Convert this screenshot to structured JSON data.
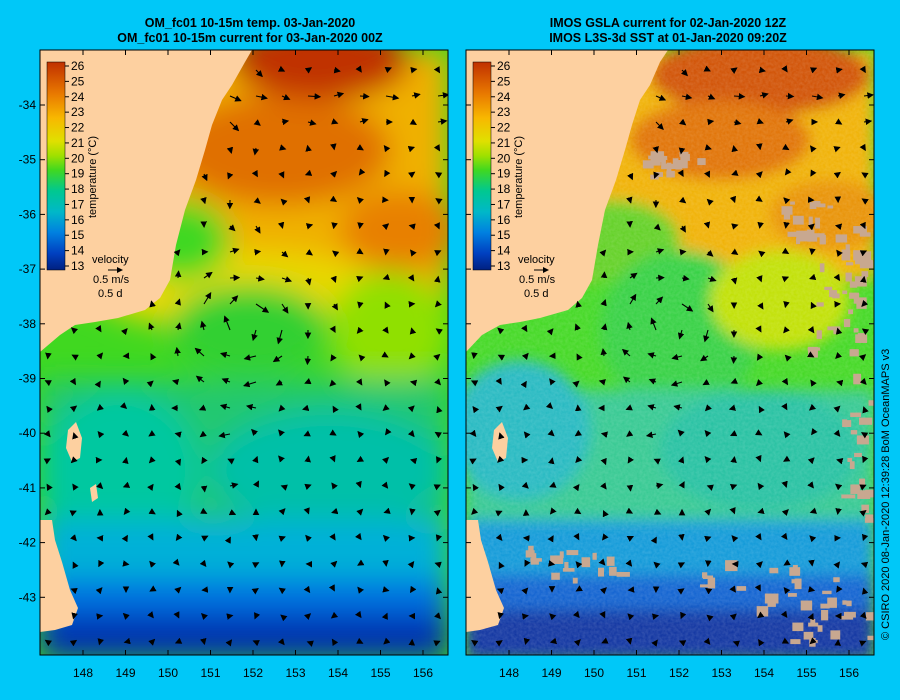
{
  "panels": [
    {
      "title_line1": "OM_fc01 10-15m temp. 03-Jan-2020",
      "title_line2": "OM_fc01 10-15m current for 03-Jan-2020 00Z"
    },
    {
      "title_line1": "IMOS GSLA current for 02-Jan-2020 12Z",
      "title_line2": "IMOS L3S-3d SST at 01-Jan-2020 09:20Z"
    }
  ],
  "map": {
    "lon_ticks": [
      "148",
      "149",
      "150",
      "151",
      "152",
      "153",
      "154",
      "155",
      "156"
    ],
    "lat_ticks": [
      "-34",
      "-35",
      "-36",
      "-37",
      "-38",
      "-39",
      "-40",
      "-41",
      "-42",
      "-43"
    ],
    "colors": {
      "land": "#fdd0a0",
      "missing_data": "#c8a890",
      "background": "#00c8f8"
    }
  },
  "colorbar": {
    "title": "temperature (°C)",
    "ticks": [
      "26",
      "25",
      "24",
      "23",
      "22",
      "21",
      "20",
      "19",
      "18",
      "17",
      "16",
      "15",
      "14",
      "13"
    ]
  },
  "velocity_legend": {
    "title": "velocity",
    "speed": "0.5 m/s",
    "duration": "0.5 d"
  },
  "credit": "© CSIRO 2020   08-Jan-2020 12:39:28 BoM OceanMAPS v3"
}
